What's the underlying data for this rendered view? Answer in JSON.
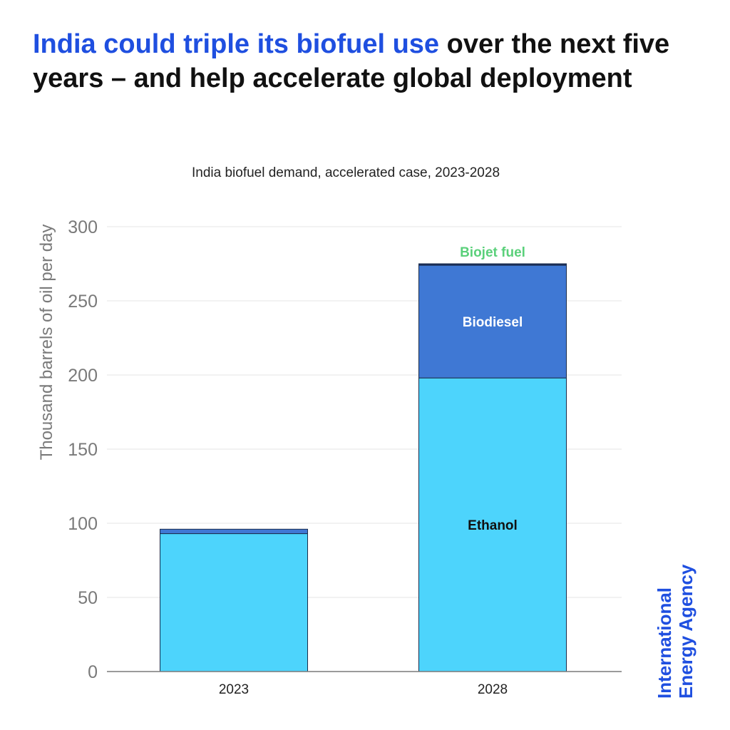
{
  "header": {
    "headline_highlight": "India could triple its biofuel use",
    "headline_rest": " over the next five years – and help accelerate global deployment"
  },
  "chart_data": {
    "type": "bar",
    "stacked": true,
    "title": "India biofuel demand, accelerated case, 2023-2028",
    "xlabel": "",
    "ylabel": "Thousand barrels of oil per day",
    "ylim": [
      0,
      300
    ],
    "yticks": [
      0,
      50,
      100,
      150,
      200,
      250,
      300
    ],
    "grid": true,
    "categories": [
      "2023",
      "2028"
    ],
    "series": [
      {
        "name": "Ethanol",
        "color": "#4dd4fc",
        "values": [
          93,
          198
        ]
      },
      {
        "name": "Biodiesel",
        "color": "#3f78d4",
        "values": [
          3,
          76
        ]
      },
      {
        "name": "Biojet fuel",
        "color": "#1b2f5e",
        "label_color": "#5ad07a",
        "values": [
          0,
          1
        ]
      }
    ]
  },
  "branding": {
    "line1": "International",
    "line2": "Energy Agency"
  }
}
